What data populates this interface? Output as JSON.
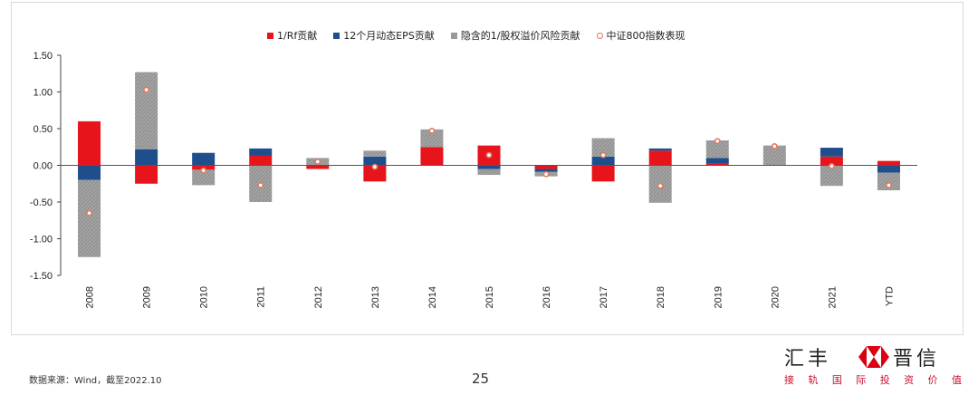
{
  "chart_data": {
    "type": "bar",
    "stacked": true,
    "categories": [
      "2008",
      "2009",
      "2010",
      "2011",
      "2012",
      "2013",
      "2014",
      "2015",
      "2016",
      "2017",
      "2018",
      "2019",
      "2020",
      "2021",
      "YTD"
    ],
    "series": [
      {
        "name": "1/Rf贡献",
        "color": "#e8141b",
        "values": [
          0.6,
          -0.25,
          -0.06,
          0.13,
          -0.05,
          -0.22,
          0.25,
          0.27,
          -0.05,
          -0.22,
          0.2,
          0.02,
          0.0,
          0.12,
          0.06
        ]
      },
      {
        "name": "12个月动态EPS贡献",
        "color": "#1f4e8c",
        "values": [
          -0.2,
          0.22,
          0.17,
          0.1,
          0.0,
          0.12,
          0.0,
          -0.05,
          -0.04,
          0.12,
          0.03,
          0.08,
          0.0,
          0.12,
          -0.1
        ]
      },
      {
        "name": "隐含的1/股权溢价风险贡献",
        "color": "#9a9a9a",
        "values": [
          -1.05,
          1.05,
          -0.21,
          -0.5,
          0.1,
          0.08,
          0.24,
          -0.08,
          -0.06,
          0.25,
          -0.51,
          0.24,
          0.27,
          -0.28,
          -0.24
        ]
      }
    ],
    "markers": {
      "name": "中证800指数表现",
      "values": [
        -0.65,
        1.03,
        -0.07,
        -0.27,
        0.05,
        -0.02,
        0.47,
        0.14,
        -0.12,
        0.14,
        -0.28,
        0.33,
        0.26,
        -0.01,
        -0.27
      ]
    },
    "ylim": [
      -1.5,
      1.5
    ],
    "yticks": [
      "-1.50",
      "-1.00",
      "-0.50",
      "0.00",
      "0.50",
      "1.00",
      "1.50"
    ],
    "grid": false,
    "legend_position": "top"
  },
  "footer": {
    "source": "数据来源：Wind，截至2022.10",
    "page": "25"
  },
  "brand": {
    "name_left": "汇丰",
    "name_right": "晋信",
    "slogan": [
      "接",
      "轨",
      "国",
      "际",
      "投",
      "资",
      "价",
      "值"
    ]
  }
}
